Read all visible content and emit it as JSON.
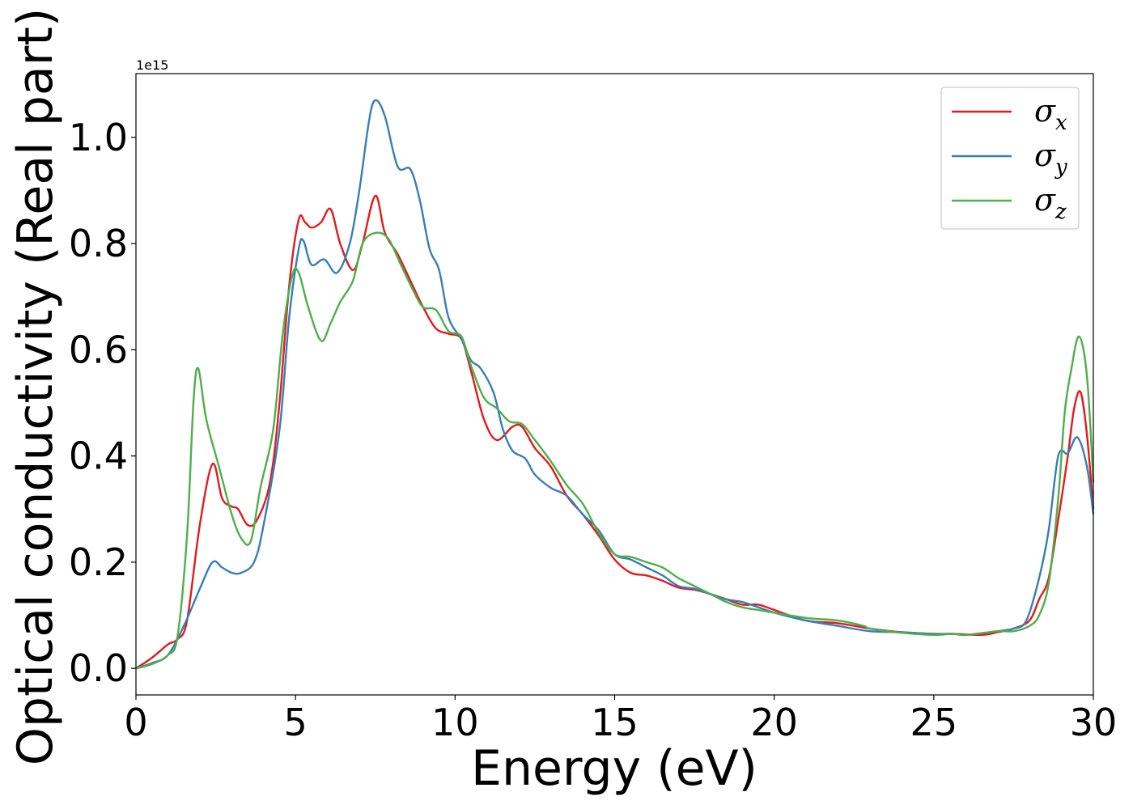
{
  "chart_data": {
    "type": "line",
    "xlabel": "Energy (eV)",
    "ylabel": "Optical conductivity (Real part)",
    "y_offset_label": "1e15",
    "xlim": [
      0,
      30
    ],
    "ylim": [
      -0.05,
      1.12
    ],
    "x_ticks": [
      0,
      5,
      10,
      15,
      20,
      25,
      30
    ],
    "x_tick_labels": [
      "0",
      "5",
      "10",
      "15",
      "20",
      "25",
      "30"
    ],
    "y_ticks": [
      0.0,
      0.2,
      0.4,
      0.6,
      0.8,
      1.0
    ],
    "y_tick_labels": [
      "0.0",
      "0.2",
      "0.4",
      "0.6",
      "0.8",
      "1.0"
    ],
    "grid": false,
    "legend_position": "upper right",
    "series": [
      {
        "name": "σx",
        "symbol": "σ",
        "subscript": "x",
        "color": "#e41a1c",
        "points": [
          [
            0,
            0
          ],
          [
            0.5,
            0.02
          ],
          [
            1,
            0.045
          ],
          [
            1.3,
            0.055
          ],
          [
            1.6,
            0.09
          ],
          [
            2,
            0.27
          ],
          [
            2.4,
            0.385
          ],
          [
            2.7,
            0.32
          ],
          [
            3,
            0.305
          ],
          [
            3.2,
            0.3
          ],
          [
            3.5,
            0.27
          ],
          [
            3.8,
            0.28
          ],
          [
            4.2,
            0.35
          ],
          [
            4.5,
            0.5
          ],
          [
            4.8,
            0.72
          ],
          [
            5.1,
            0.845
          ],
          [
            5.3,
            0.84
          ],
          [
            5.5,
            0.83
          ],
          [
            5.8,
            0.84
          ],
          [
            6.1,
            0.865
          ],
          [
            6.4,
            0.8
          ],
          [
            6.8,
            0.75
          ],
          [
            7.1,
            0.8
          ],
          [
            7.5,
            0.89
          ],
          [
            7.8,
            0.82
          ],
          [
            8.2,
            0.78
          ],
          [
            8.6,
            0.73
          ],
          [
            9,
            0.68
          ],
          [
            9.4,
            0.64
          ],
          [
            9.8,
            0.63
          ],
          [
            10.2,
            0.62
          ],
          [
            10.5,
            0.56
          ],
          [
            10.9,
            0.47
          ],
          [
            11.3,
            0.43
          ],
          [
            11.8,
            0.455
          ],
          [
            12.1,
            0.455
          ],
          [
            12.5,
            0.415
          ],
          [
            13,
            0.38
          ],
          [
            13.5,
            0.325
          ],
          [
            14,
            0.29
          ],
          [
            14.5,
            0.25
          ],
          [
            15,
            0.205
          ],
          [
            15.5,
            0.18
          ],
          [
            16,
            0.175
          ],
          [
            16.5,
            0.165
          ],
          [
            17,
            0.152
          ],
          [
            17.5,
            0.148
          ],
          [
            18,
            0.14
          ],
          [
            18.5,
            0.13
          ],
          [
            19,
            0.12
          ],
          [
            19.5,
            0.12
          ],
          [
            20,
            0.11
          ],
          [
            21,
            0.09
          ],
          [
            22,
            0.085
          ],
          [
            23,
            0.075
          ],
          [
            24,
            0.068
          ],
          [
            25,
            0.065
          ],
          [
            25.6,
            0.065
          ],
          [
            26.5,
            0.063
          ],
          [
            27,
            0.068
          ],
          [
            27.5,
            0.075
          ],
          [
            28,
            0.09
          ],
          [
            28.3,
            0.13
          ],
          [
            28.6,
            0.17
          ],
          [
            28.9,
            0.28
          ],
          [
            29.2,
            0.4
          ],
          [
            29.4,
            0.49
          ],
          [
            29.6,
            0.52
          ],
          [
            29.8,
            0.44
          ],
          [
            30,
            0.3
          ]
        ]
      },
      {
        "name": "σy",
        "symbol": "σ",
        "subscript": "y",
        "color": "#377eb8",
        "points": [
          [
            0,
            0
          ],
          [
            0.5,
            0.01
          ],
          [
            1,
            0.025
          ],
          [
            1.5,
            0.08
          ],
          [
            2,
            0.15
          ],
          [
            2.4,
            0.2
          ],
          [
            2.7,
            0.19
          ],
          [
            3,
            0.18
          ],
          [
            3.3,
            0.18
          ],
          [
            3.7,
            0.2
          ],
          [
            4,
            0.27
          ],
          [
            4.5,
            0.45
          ],
          [
            4.8,
            0.66
          ],
          [
            5.1,
            0.79
          ],
          [
            5.25,
            0.805
          ],
          [
            5.5,
            0.76
          ],
          [
            5.9,
            0.77
          ],
          [
            6.3,
            0.745
          ],
          [
            6.7,
            0.8
          ],
          [
            7,
            0.9
          ],
          [
            7.3,
            1.03
          ],
          [
            7.5,
            1.07
          ],
          [
            7.8,
            1.04
          ],
          [
            8.2,
            0.945
          ],
          [
            8.6,
            0.94
          ],
          [
            8.9,
            0.88
          ],
          [
            9.2,
            0.79
          ],
          [
            9.5,
            0.75
          ],
          [
            9.8,
            0.66
          ],
          [
            10.2,
            0.62
          ],
          [
            10.5,
            0.58
          ],
          [
            10.8,
            0.565
          ],
          [
            11.2,
            0.52
          ],
          [
            11.5,
            0.45
          ],
          [
            11.8,
            0.41
          ],
          [
            12.2,
            0.395
          ],
          [
            12.5,
            0.365
          ],
          [
            13,
            0.34
          ],
          [
            13.5,
            0.325
          ],
          [
            14,
            0.29
          ],
          [
            14.5,
            0.26
          ],
          [
            15,
            0.215
          ],
          [
            15.5,
            0.205
          ],
          [
            16,
            0.19
          ],
          [
            16.5,
            0.175
          ],
          [
            17,
            0.155
          ],
          [
            17.5,
            0.15
          ],
          [
            18,
            0.14
          ],
          [
            18.5,
            0.13
          ],
          [
            19,
            0.125
          ],
          [
            19.5,
            0.115
          ],
          [
            20,
            0.105
          ],
          [
            21,
            0.09
          ],
          [
            22,
            0.08
          ],
          [
            23,
            0.07
          ],
          [
            24,
            0.068
          ],
          [
            25,
            0.065
          ],
          [
            25.6,
            0.065
          ],
          [
            26,
            0.063
          ],
          [
            27,
            0.07
          ],
          [
            27.5,
            0.075
          ],
          [
            27.9,
            0.09
          ],
          [
            28.3,
            0.17
          ],
          [
            28.6,
            0.26
          ],
          [
            28.9,
            0.4
          ],
          [
            29.2,
            0.405
          ],
          [
            29.5,
            0.435
          ],
          [
            29.8,
            0.38
          ],
          [
            30,
            0.29
          ]
        ]
      },
      {
        "name": "σz",
        "symbol": "σ",
        "subscript": "z",
        "color": "#4daf4a",
        "points": [
          [
            0,
            0
          ],
          [
            0.5,
            0.008
          ],
          [
            1,
            0.025
          ],
          [
            1.3,
            0.06
          ],
          [
            1.6,
            0.25
          ],
          [
            1.8,
            0.5
          ],
          [
            1.95,
            0.565
          ],
          [
            2.2,
            0.47
          ],
          [
            2.6,
            0.38
          ],
          [
            3,
            0.29
          ],
          [
            3.3,
            0.245
          ],
          [
            3.6,
            0.24
          ],
          [
            3.9,
            0.34
          ],
          [
            4.3,
            0.45
          ],
          [
            4.6,
            0.63
          ],
          [
            4.9,
            0.74
          ],
          [
            5.1,
            0.745
          ],
          [
            5.4,
            0.68
          ],
          [
            5.8,
            0.617
          ],
          [
            6.1,
            0.65
          ],
          [
            6.4,
            0.69
          ],
          [
            6.8,
            0.73
          ],
          [
            7.1,
            0.8
          ],
          [
            7.5,
            0.82
          ],
          [
            7.9,
            0.81
          ],
          [
            8.3,
            0.76
          ],
          [
            8.7,
            0.71
          ],
          [
            9,
            0.68
          ],
          [
            9.4,
            0.675
          ],
          [
            9.8,
            0.635
          ],
          [
            10.2,
            0.625
          ],
          [
            10.5,
            0.57
          ],
          [
            10.9,
            0.51
          ],
          [
            11.3,
            0.49
          ],
          [
            11.7,
            0.465
          ],
          [
            12.1,
            0.46
          ],
          [
            12.5,
            0.43
          ],
          [
            13,
            0.39
          ],
          [
            13.5,
            0.345
          ],
          [
            14,
            0.31
          ],
          [
            14.5,
            0.255
          ],
          [
            15,
            0.215
          ],
          [
            15.5,
            0.21
          ],
          [
            16,
            0.2
          ],
          [
            16.5,
            0.19
          ],
          [
            17,
            0.17
          ],
          [
            17.5,
            0.155
          ],
          [
            18,
            0.14
          ],
          [
            18.5,
            0.125
          ],
          [
            19,
            0.115
          ],
          [
            19.5,
            0.11
          ],
          [
            20,
            0.105
          ],
          [
            21,
            0.095
          ],
          [
            22,
            0.09
          ],
          [
            22.8,
            0.08
          ],
          [
            23,
            0.075
          ],
          [
            24,
            0.067
          ],
          [
            25,
            0.063
          ],
          [
            25.6,
            0.065
          ],
          [
            26,
            0.063
          ],
          [
            27,
            0.07
          ],
          [
            27.5,
            0.07
          ],
          [
            28,
            0.08
          ],
          [
            28.3,
            0.1
          ],
          [
            28.6,
            0.16
          ],
          [
            28.9,
            0.32
          ],
          [
            29.1,
            0.48
          ],
          [
            29.3,
            0.56
          ],
          [
            29.55,
            0.625
          ],
          [
            29.8,
            0.55
          ],
          [
            30,
            0.35
          ]
        ]
      }
    ]
  }
}
